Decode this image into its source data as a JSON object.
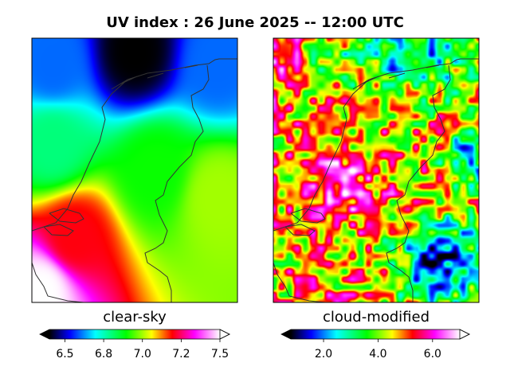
{
  "figure": {
    "title": "UV index :  26 June 2025  --  12:00 UTC"
  },
  "chart_data": [
    {
      "type": "heatmap",
      "title": "clear-sky",
      "colorbar": {
        "min": 6.4,
        "max": 7.5,
        "extend": "both",
        "ticks": [
          6.5,
          6.75,
          7.0,
          7.25,
          7.5
        ],
        "tick_labels": [
          "6.5",
          "6.8",
          "7.0",
          "7.2",
          "7.5"
        ]
      },
      "field_description": "UV index over the Netherlands: low (~6.4) in the north, rising to ~7.5 in the south-west",
      "anchors": [
        {
          "lon_frac": 0.5,
          "lat_frac": 0.05,
          "value": 6.4
        },
        {
          "lon_frac": 0.1,
          "lat_frac": 0.1,
          "value": 6.6
        },
        {
          "lon_frac": 0.9,
          "lat_frac": 0.1,
          "value": 6.6
        },
        {
          "lon_frac": 0.1,
          "lat_frac": 0.4,
          "value": 6.8
        },
        {
          "lon_frac": 0.6,
          "lat_frac": 0.5,
          "value": 6.9
        },
        {
          "lon_frac": 0.9,
          "lat_frac": 0.6,
          "value": 7.0
        },
        {
          "lon_frac": 0.2,
          "lat_frac": 0.75,
          "value": 7.2
        },
        {
          "lon_frac": 0.05,
          "lat_frac": 0.95,
          "value": 7.5
        }
      ]
    },
    {
      "type": "heatmap",
      "title": "cloud-modified",
      "colorbar": {
        "min": 0.8,
        "max": 7.0,
        "extend": "both",
        "ticks": [
          2.0,
          4.0,
          6.0
        ],
        "tick_labels": [
          "2.0",
          "4.0",
          "6.0"
        ]
      },
      "field_description": "UV index with clouds: mostly 4-6 with patches above 6 in the centre-west and low values (~1-2) in the north and south-east"
    }
  ]
}
